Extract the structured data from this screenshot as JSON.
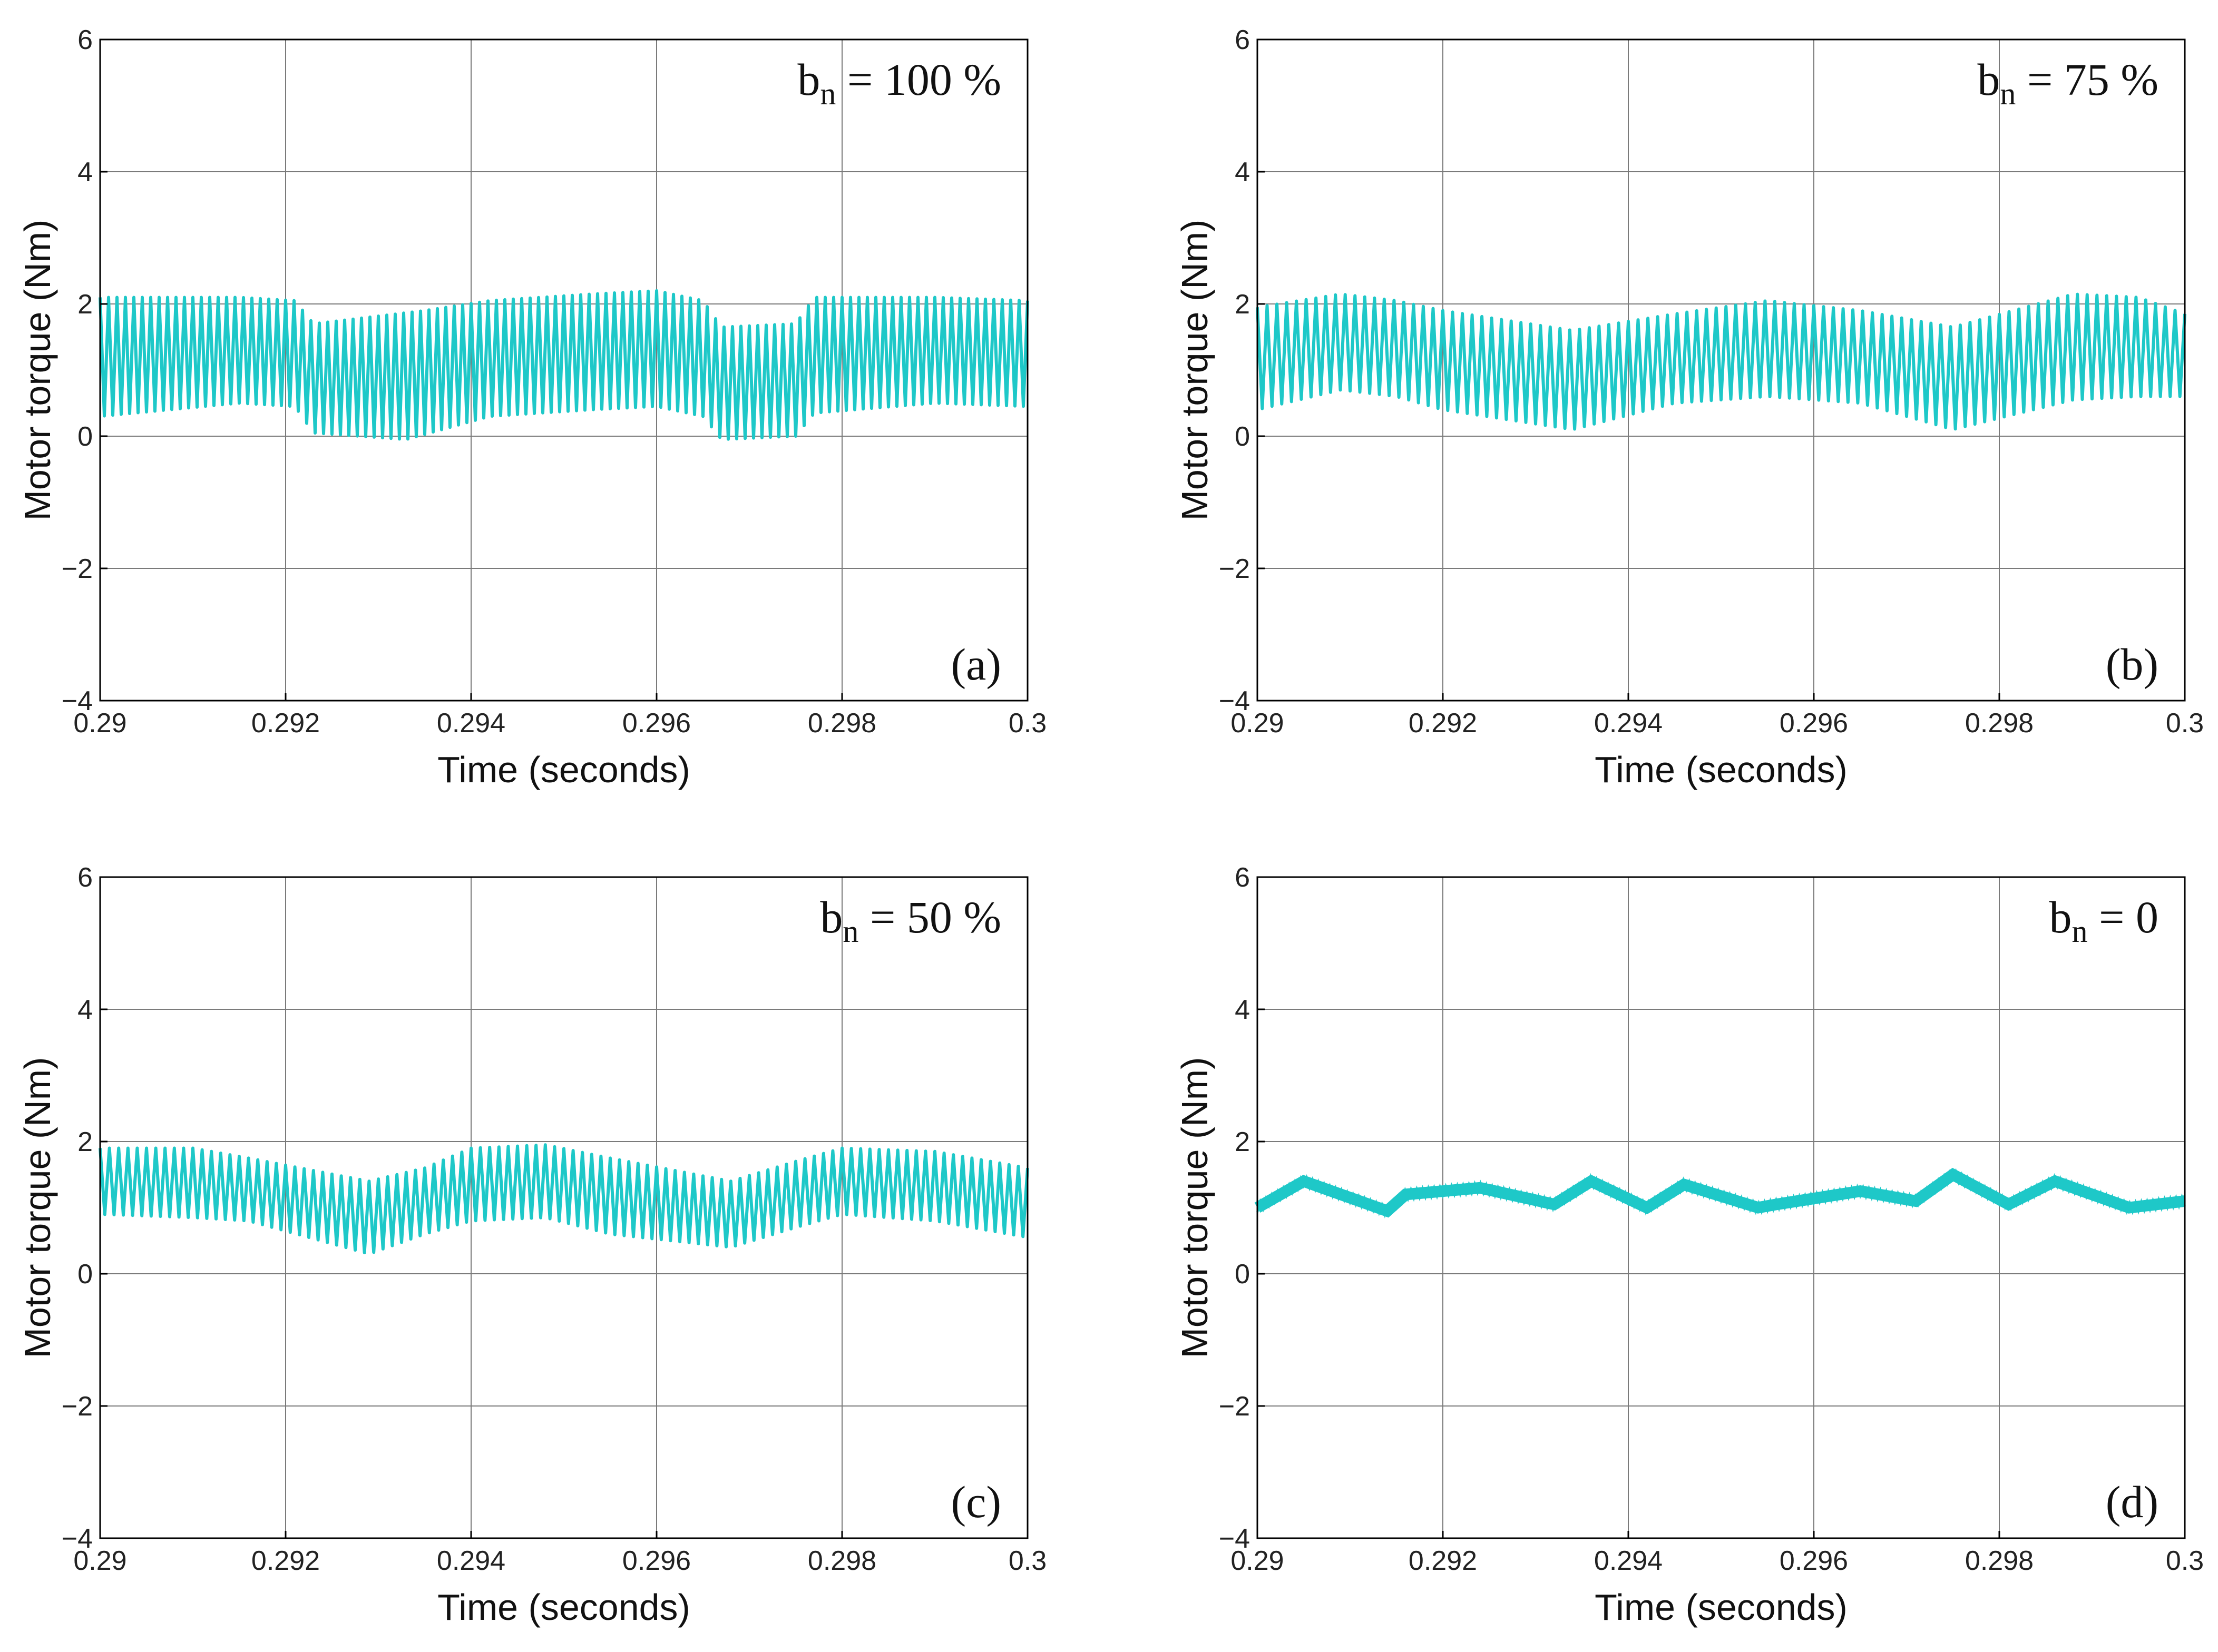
{
  "chart_data": [
    {
      "type": "line",
      "panel": "(a)",
      "annotation_main": "b",
      "annotation_sub": "n",
      "annotation_rest": " = 100 %",
      "xlabel": "Time (seconds)",
      "ylabel": "Motor torque (Nm)",
      "xlim": [
        0.29,
        0.3
      ],
      "ylim": [
        -4,
        6
      ],
      "x_ticks": [
        "0.29",
        "0.292",
        "0.294",
        "0.296",
        "0.298",
        "0.3"
      ],
      "y_ticks": [
        "6",
        "4",
        "2",
        "0",
        "−2",
        "−4"
      ],
      "grid": true,
      "color": "#1ec8c8",
      "ripple_cycles": 110,
      "upper_envelope": {
        "x": [
          0.29,
          0.2915,
          0.2921,
          0.2923,
          0.2935,
          0.2942,
          0.2953,
          0.296,
          0.2965,
          0.2967,
          0.2975,
          0.2977,
          0.299,
          0.3
        ],
        "y": [
          2.1,
          2.1,
          2.05,
          1.7,
          1.9,
          2.05,
          2.15,
          2.2,
          2.05,
          1.65,
          1.7,
          2.1,
          2.1,
          2.05
        ]
      },
      "lower_envelope": {
        "x": [
          0.29,
          0.2915,
          0.2921,
          0.2923,
          0.2933,
          0.2942,
          0.2953,
          0.296,
          0.2965,
          0.2967,
          0.2975,
          0.2977,
          0.299,
          0.3
        ],
        "y": [
          0.3,
          0.5,
          0.45,
          0.05,
          -0.05,
          0.3,
          0.4,
          0.45,
          0.3,
          -0.05,
          0.0,
          0.35,
          0.5,
          0.45
        ]
      }
    },
    {
      "type": "line",
      "panel": "(b)",
      "annotation_main": "b",
      "annotation_sub": "n",
      "annotation_rest": " = 75 %",
      "xlabel": "Time (seconds)",
      "ylabel": "Motor torque (Nm)",
      "xlim": [
        0.29,
        0.3
      ],
      "ylim": [
        -4,
        6
      ],
      "x_ticks": [
        "0.29",
        "0.292",
        "0.294",
        "0.296",
        "0.298",
        "0.3"
      ],
      "y_ticks": [
        "6",
        "4",
        "2",
        "0",
        "−2",
        "−4"
      ],
      "grid": true,
      "color": "#1ec8c8",
      "ripple_cycles": 95,
      "upper_envelope": {
        "x": [
          0.29,
          0.2909,
          0.2915,
          0.292,
          0.2934,
          0.2945,
          0.2955,
          0.2965,
          0.2975,
          0.2988,
          0.2995,
          0.3
        ],
        "y": [
          1.95,
          2.15,
          2.05,
          1.9,
          1.6,
          1.85,
          2.05,
          1.9,
          1.65,
          2.15,
          2.1,
          1.85
        ]
      },
      "lower_envelope": {
        "x": [
          0.29,
          0.2909,
          0.2915,
          0.292,
          0.2934,
          0.2945,
          0.2955,
          0.2965,
          0.2975,
          0.2988,
          0.2995,
          0.3
        ],
        "y": [
          0.4,
          0.7,
          0.6,
          0.4,
          0.1,
          0.5,
          0.6,
          0.5,
          0.1,
          0.55,
          0.6,
          0.6
        ]
      }
    },
    {
      "type": "line",
      "panel": "(c)",
      "annotation_main": "b",
      "annotation_sub": "n",
      "annotation_rest": " = 50 %",
      "xlabel": "Time (seconds)",
      "ylabel": "Motor torque (Nm)",
      "xlim": [
        0.29,
        0.3
      ],
      "ylim": [
        -4,
        6
      ],
      "x_ticks": [
        "0.29",
        "0.292",
        "0.294",
        "0.296",
        "0.298",
        "0.3"
      ],
      "y_ticks": [
        "6",
        "4",
        "2",
        "0",
        "−2",
        "−4"
      ],
      "grid": true,
      "color": "#1ec8c8",
      "ripple_cycles": 100,
      "upper_envelope": {
        "x": [
          0.29,
          0.291,
          0.2916,
          0.2929,
          0.2935,
          0.294,
          0.2948,
          0.2955,
          0.2968,
          0.2975,
          0.298,
          0.299,
          0.3
        ],
        "y": [
          1.9,
          1.9,
          1.75,
          1.4,
          1.6,
          1.9,
          1.95,
          1.75,
          1.4,
          1.7,
          1.9,
          1.85,
          1.6
        ]
      },
      "lower_envelope": {
        "x": [
          0.29,
          0.291,
          0.2916,
          0.2929,
          0.2935,
          0.294,
          0.2948,
          0.2955,
          0.2968,
          0.2975,
          0.298,
          0.299,
          0.3
        ],
        "y": [
          0.9,
          0.85,
          0.8,
          0.3,
          0.6,
          0.8,
          0.85,
          0.6,
          0.4,
          0.7,
          0.9,
          0.8,
          0.55
        ]
      }
    },
    {
      "type": "line",
      "panel": "(d)",
      "annotation_main": "b",
      "annotation_sub": "n",
      "annotation_rest": " = 0",
      "xlabel": "Time (seconds)",
      "ylabel": "Motor torque (Nm)",
      "xlim": [
        0.29,
        0.3
      ],
      "ylim": [
        -4,
        6
      ],
      "x_ticks": [
        "0.29",
        "0.292",
        "0.294",
        "0.296",
        "0.298",
        "0.3"
      ],
      "y_ticks": [
        "6",
        "4",
        "2",
        "0",
        "−2",
        "−4"
      ],
      "grid": true,
      "color": "#1ec8c8",
      "x": [
        0.29,
        0.2905,
        0.2914,
        0.2916,
        0.2924,
        0.2932,
        0.2936,
        0.2942,
        0.2946,
        0.2954,
        0.2956,
        0.2965,
        0.2971,
        0.2975,
        0.2981,
        0.2986,
        0.2994,
        0.3
      ],
      "y": [
        1.0,
        1.4,
        0.95,
        1.2,
        1.3,
        1.05,
        1.4,
        1.0,
        1.35,
        1.0,
        1.05,
        1.25,
        1.1,
        1.5,
        1.05,
        1.4,
        1.0,
        1.1
      ]
    }
  ]
}
